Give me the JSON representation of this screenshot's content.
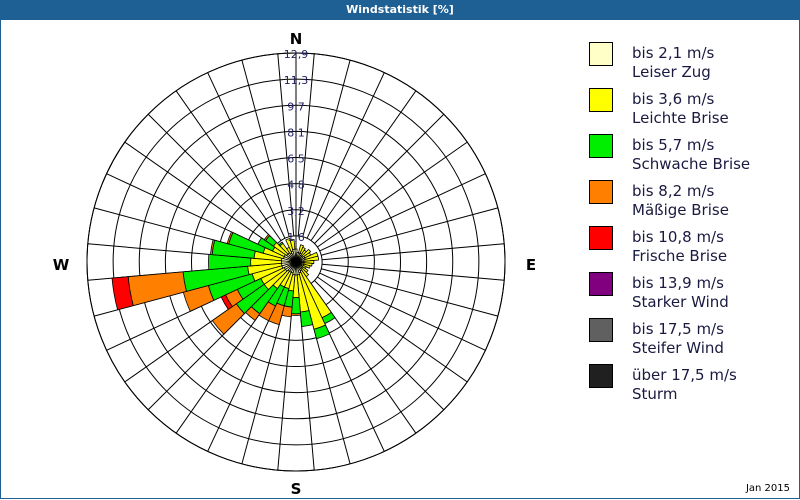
{
  "header": {
    "title": "Windstatistik [%]"
  },
  "footer": {
    "date": "Jan 2015"
  },
  "compass": {
    "n": "N",
    "e": "E",
    "s": "S",
    "w": "W"
  },
  "legend": [
    {
      "line1": "bis 2,1 m/s",
      "line2": "Leiser Zug",
      "color": "#ffffc8"
    },
    {
      "line1": "bis 3,6 m/s",
      "line2": "Leichte Brise",
      "color": "#ffff00"
    },
    {
      "line1": "bis 5,7 m/s",
      "line2": "Schwache Brise",
      "color": "#00ee00"
    },
    {
      "line1": "bis 8,2 m/s",
      "line2": "Mäßige Brise",
      "color": "#ff8000"
    },
    {
      "line1": "bis 10,8 m/s",
      "line2": "Frische Brise",
      "color": "#ff0000"
    },
    {
      "line1": "bis 13,9 m/s",
      "line2": "Starker Wind",
      "color": "#800080"
    },
    {
      "line1": "bis 17,5 m/s",
      "line2": "Steifer Wind",
      "color": "#606060"
    },
    {
      "line1": "über 17,5 m/s",
      "line2": "Sturm",
      "color": "#202020"
    }
  ],
  "chart_data": {
    "type": "polar-bar (wind rose)",
    "title": "Windstatistik [%]",
    "radial_ticks": [
      "1,6",
      "3,2",
      "4,8",
      "6,5",
      "8,1",
      "9,7",
      "11,3",
      "12,9"
    ],
    "rmax": 12.9,
    "sector_width_deg": 10,
    "series_names": [
      "bis 2,1 m/s",
      "bis 3,6 m/s",
      "bis 5,7 m/s",
      "bis 8,2 m/s",
      "bis 10,8 m/s",
      "bis 13,9 m/s",
      "bis 17,5 m/s",
      "über 17,5 m/s"
    ],
    "sectors": [
      {
        "dir": 0,
        "values": [
          0.8,
          0.0,
          0,
          0,
          0,
          0,
          0,
          0
        ]
      },
      {
        "dir": 10,
        "values": [
          0.6,
          0.0,
          0,
          0,
          0,
          0,
          0,
          0
        ]
      },
      {
        "dir": 20,
        "values": [
          0.6,
          0.5,
          0,
          0,
          0,
          0,
          0,
          0
        ]
      },
      {
        "dir": 30,
        "values": [
          0.6,
          0.4,
          0,
          0,
          0,
          0,
          0,
          0
        ]
      },
      {
        "dir": 40,
        "values": [
          0.5,
          0.4,
          0,
          0,
          0,
          0,
          0,
          0
        ]
      },
      {
        "dir": 50,
        "values": [
          0.5,
          0.6,
          0,
          0,
          0,
          0,
          0,
          0
        ]
      },
      {
        "dir": 60,
        "values": [
          0.6,
          0.4,
          0,
          0,
          0,
          0,
          0,
          0
        ]
      },
      {
        "dir": 70,
        "values": [
          0.6,
          0.8,
          0,
          0,
          0,
          0,
          0,
          0
        ]
      },
      {
        "dir": 80,
        "values": [
          0.5,
          0.9,
          0,
          0,
          0,
          0,
          0,
          0
        ]
      },
      {
        "dir": 90,
        "values": [
          0.5,
          0.6,
          0,
          0,
          0,
          0,
          0,
          0
        ]
      },
      {
        "dir": 100,
        "values": [
          0.5,
          0.5,
          0,
          0,
          0,
          0,
          0,
          0
        ]
      },
      {
        "dir": 110,
        "values": [
          0.5,
          0.4,
          0,
          0,
          0,
          0,
          0,
          0
        ]
      },
      {
        "dir": 120,
        "values": [
          0.4,
          0.3,
          0,
          0,
          0,
          0,
          0,
          0
        ]
      },
      {
        "dir": 130,
        "values": [
          0.5,
          0.4,
          0,
          0,
          0,
          0,
          0,
          0
        ]
      },
      {
        "dir": 140,
        "values": [
          0.5,
          0.6,
          0,
          0,
          0,
          0,
          0,
          0
        ]
      },
      {
        "dir": 150,
        "values": [
          0.6,
          3.2,
          0.4,
          0,
          0,
          0,
          0,
          0
        ]
      },
      {
        "dir": 160,
        "values": [
          0.7,
          3.6,
          0.6,
          0,
          0,
          0,
          0,
          0
        ]
      },
      {
        "dir": 170,
        "values": [
          0.8,
          2.3,
          0.9,
          0,
          0,
          0,
          0,
          0
        ]
      },
      {
        "dir": 180,
        "values": [
          0.8,
          1.4,
          1.0,
          0.1,
          0,
          0,
          0,
          0
        ]
      },
      {
        "dir": 190,
        "values": [
          0.8,
          1.0,
          1.0,
          0.6,
          0,
          0,
          0,
          0
        ]
      },
      {
        "dir": 200,
        "values": [
          0.7,
          1.0,
          1.1,
          1.2,
          0,
          0,
          0,
          0
        ]
      },
      {
        "dir": 210,
        "values": [
          0.7,
          1.0,
          1.3,
          1.0,
          0,
          0,
          0,
          0
        ]
      },
      {
        "dir": 220,
        "values": [
          0.7,
          1.3,
          1.9,
          0.5,
          0,
          0,
          0,
          0
        ]
      },
      {
        "dir": 230,
        "values": [
          0.8,
          1.6,
          2.1,
          1.8,
          0,
          0,
          0,
          0
        ]
      },
      {
        "dir": 240,
        "values": [
          0.8,
          1.6,
          1.6,
          0.8,
          0.3,
          0,
          0,
          0
        ]
      },
      {
        "dir": 250,
        "values": [
          0.9,
          1.9,
          2.8,
          1.6,
          0,
          0,
          0,
          0
        ]
      },
      {
        "dir": 260,
        "values": [
          0.9,
          2.1,
          4.0,
          3.4,
          1.0,
          0,
          0,
          0
        ]
      },
      {
        "dir": 270,
        "values": [
          0.9,
          1.9,
          2.6,
          0,
          0,
          0,
          0,
          0
        ]
      },
      {
        "dir": 280,
        "values": [
          0.9,
          1.7,
          2.6,
          0.1,
          0,
          0,
          0,
          0
        ]
      },
      {
        "dir": 290,
        "values": [
          0.8,
          1.3,
          2.2,
          0.1,
          0,
          0,
          0,
          0
        ]
      },
      {
        "dir": 300,
        "values": [
          0.8,
          0.8,
          1.0,
          0,
          0,
          0,
          0,
          0
        ]
      },
      {
        "dir": 310,
        "values": [
          0.7,
          1.0,
          0.6,
          0.1,
          0,
          0,
          0,
          0
        ]
      },
      {
        "dir": 320,
        "values": [
          0.7,
          0.7,
          0.1,
          0,
          0,
          0,
          0,
          0
        ]
      },
      {
        "dir": 330,
        "values": [
          0.6,
          0.4,
          0,
          0,
          0,
          0,
          0,
          0
        ]
      },
      {
        "dir": 340,
        "values": [
          0.7,
          0.8,
          0,
          0,
          0,
          0,
          0,
          0
        ]
      },
      {
        "dir": 350,
        "values": [
          0.8,
          0.6,
          0,
          0,
          0,
          0,
          0,
          0
        ]
      }
    ],
    "grid": true,
    "legend_position": "right"
  }
}
